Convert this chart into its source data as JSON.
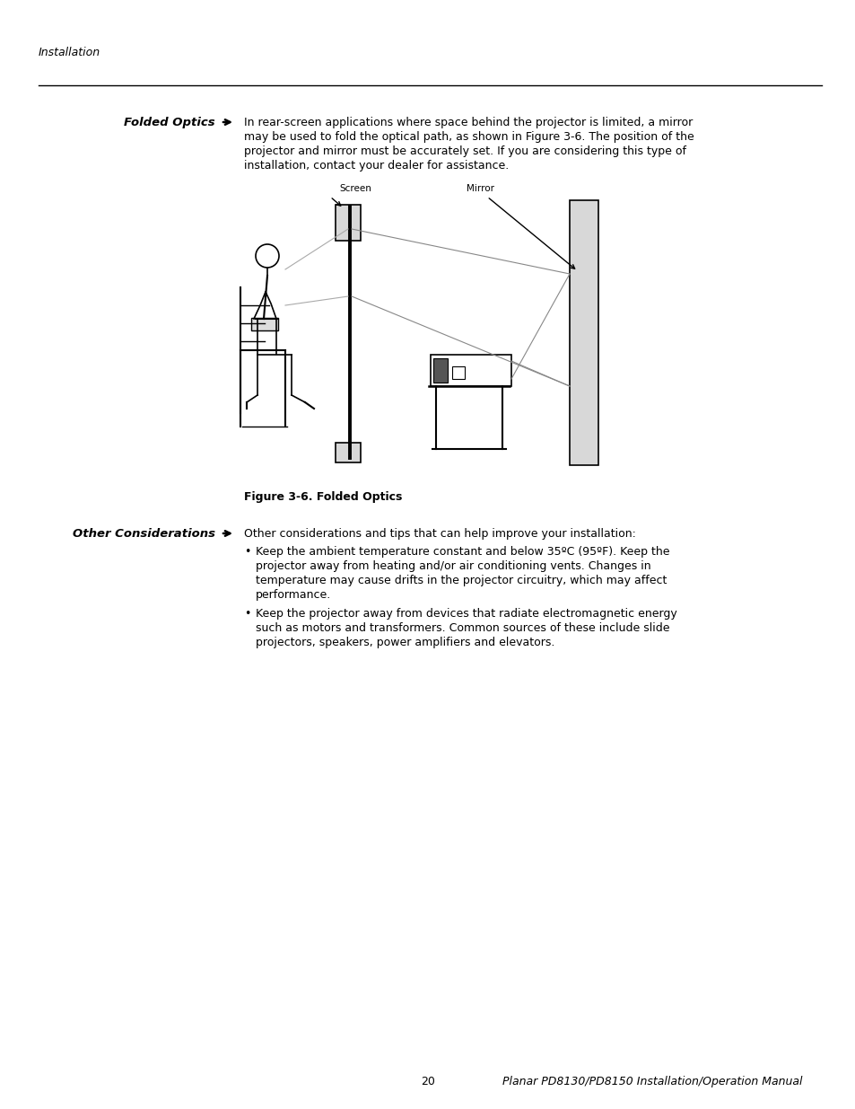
{
  "page_width": 9.54,
  "page_height": 12.35,
  "bg_color": "#ffffff",
  "text_color": "#000000",
  "line_color": "#000000",
  "gray_color": "#b0b0b0",
  "light_gray": "#d8d8d8",
  "header_text": "Installation",
  "footer_page": "20",
  "footer_text": "Planar PD8130/PD8150 Installation/Operation Manual",
  "section1_label": "Folded Optics",
  "section1_text_lines": [
    "In rear-screen applications where space behind the projector is limited, a mirror",
    "may be used to fold the optical path, as shown in Figure 3-6. The position of the",
    "projector and mirror must be accurately set. If you are considering this type of",
    "installation, contact your dealer for assistance."
  ],
  "figure_caption": "Figure 3-6. Folded Optics",
  "section2_label": "Other Considerations",
  "section2_intro": "Other considerations and tips that can help improve your installation:",
  "bullet1_lines": [
    "Keep the ambient temperature constant and below 35ºC (95ºF). Keep the",
    "projector away from heating and/or air conditioning vents. Changes in",
    "temperature may cause drifts in the projector circuitry, which may affect",
    "performance."
  ],
  "bullet2_lines": [
    "Keep the projector away from devices that radiate electromagnetic energy",
    "such as motors and transformers. Common sources of these include slide",
    "projectors, speakers, power amplifiers and elevators."
  ]
}
